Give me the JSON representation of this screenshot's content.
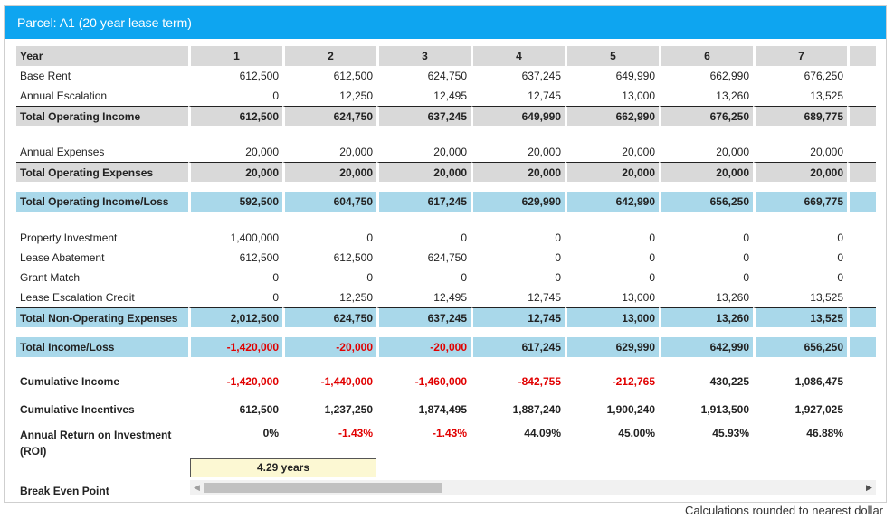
{
  "panel": {
    "title": "Parcel: A1 (20 year lease term)"
  },
  "table": {
    "header": {
      "label": "Year",
      "years": [
        "1",
        "2",
        "3",
        "4",
        "5",
        "6",
        "7"
      ]
    },
    "operating": [
      {
        "label": "Base Rent",
        "values": [
          "612,500",
          "612,500",
          "624,750",
          "637,245",
          "649,990",
          "662,990",
          "676,250"
        ]
      },
      {
        "label": "Annual Escalation",
        "values": [
          "0",
          "12,250",
          "12,495",
          "12,745",
          "13,000",
          "13,260",
          "13,525"
        ]
      }
    ],
    "total_operating_income": {
      "label": "Total Operating Income",
      "values": [
        "612,500",
        "624,750",
        "637,245",
        "649,990",
        "662,990",
        "676,250",
        "689,775"
      ]
    },
    "expenses": [
      {
        "label": "Annual Expenses",
        "values": [
          "20,000",
          "20,000",
          "20,000",
          "20,000",
          "20,000",
          "20,000",
          "20,000"
        ]
      }
    ],
    "total_operating_expenses": {
      "label": "Total Operating Expenses",
      "values": [
        "20,000",
        "20,000",
        "20,000",
        "20,000",
        "20,000",
        "20,000",
        "20,000"
      ]
    },
    "total_operating_income_loss": {
      "label": "Total Operating Income/Loss",
      "values": [
        "592,500",
        "604,750",
        "617,245",
        "629,990",
        "642,990",
        "656,250",
        "669,775"
      ]
    },
    "non_operating": [
      {
        "label": "Property Investment",
        "values": [
          "1,400,000",
          "0",
          "0",
          "0",
          "0",
          "0",
          "0"
        ]
      },
      {
        "label": "Lease Abatement",
        "values": [
          "612,500",
          "612,500",
          "624,750",
          "0",
          "0",
          "0",
          "0"
        ]
      },
      {
        "label": "Grant Match",
        "values": [
          "0",
          "0",
          "0",
          "0",
          "0",
          "0",
          "0"
        ]
      },
      {
        "label": "Lease Escalation Credit",
        "values": [
          "0",
          "12,250",
          "12,495",
          "12,745",
          "13,000",
          "13,260",
          "13,525"
        ]
      }
    ],
    "total_non_operating_expenses": {
      "label": "Total Non-Operating Expenses",
      "values": [
        "2,012,500",
        "624,750",
        "637,245",
        "12,745",
        "13,000",
        "13,260",
        "13,525"
      ]
    },
    "total_income_loss": {
      "label": "Total Income/Loss",
      "values": [
        "-1,420,000",
        "-20,000",
        "-20,000",
        "617,245",
        "629,990",
        "642,990",
        "656,250"
      ]
    },
    "cumulative_income": {
      "label": "Cumulative Income",
      "values": [
        "-1,420,000",
        "-1,440,000",
        "-1,460,000",
        "-842,755",
        "-212,765",
        "430,225",
        "1,086,475"
      ]
    },
    "cumulative_incentives": {
      "label": "Cumulative Incentives",
      "values": [
        "612,500",
        "1,237,250",
        "1,874,495",
        "1,887,240",
        "1,900,240",
        "1,913,500",
        "1,927,025"
      ]
    },
    "roi": {
      "label_line1": "Annual Return on Investment",
      "label_line2": "(ROI)",
      "values": [
        "0%",
        "-1.43%",
        "-1.43%",
        "44.09%",
        "45.00%",
        "45.93%",
        "46.88%"
      ]
    },
    "break_even": {
      "label": "Break Even Point",
      "value": "4.29 years"
    }
  },
  "footnote": "Calculations rounded to nearest dollar",
  "colors": {
    "header_blue": "#0ea5f0",
    "gray_row": "#d9d9d9",
    "blue_row": "#a9d8ea",
    "negative": "#e10000",
    "break_even_bg": "#fcf8d3"
  }
}
